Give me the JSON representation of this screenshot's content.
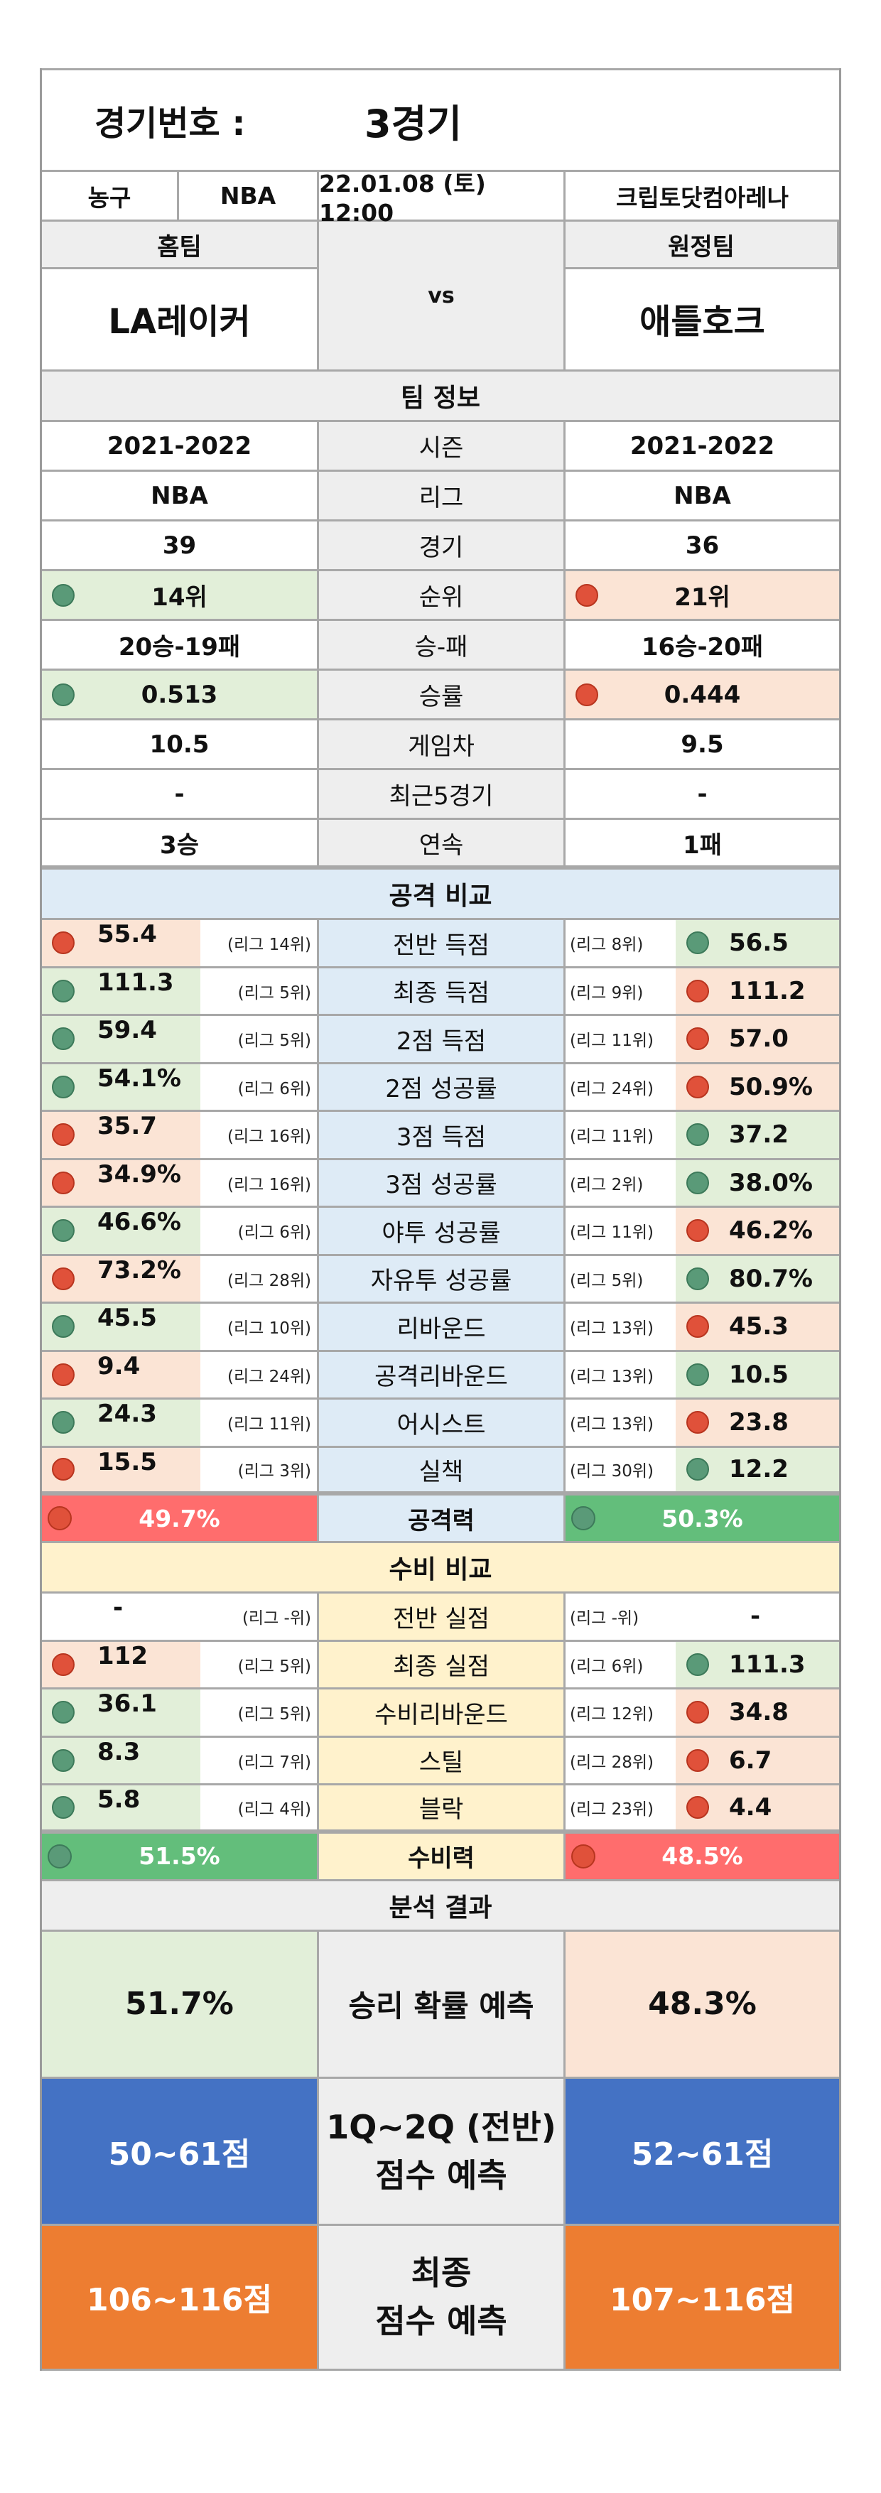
{
  "header": {
    "game_label": "경기번호 :",
    "game_value": "3경기",
    "sport": "농구",
    "league": "NBA",
    "datetime": "22.01.08 (토) 12:00",
    "venue": "크립토닷컴아레나"
  },
  "teams": {
    "home_label": "홈팀",
    "away_label": "원정팀",
    "home_name": "LA레이커",
    "away_name": "애틀호크",
    "vs": "vs"
  },
  "team_info": {
    "section": "팀 정보",
    "rows": [
      {
        "label": "시즌",
        "home": "2021-2022",
        "away": "2021-2022"
      },
      {
        "label": "리그",
        "home": "NBA",
        "away": "NBA"
      },
      {
        "label": "경기",
        "home": "39",
        "away": "36"
      },
      {
        "label": "순위",
        "home": "14위",
        "away": "21위",
        "home_dot": "green",
        "away_dot": "red"
      },
      {
        "label": "승-패",
        "home": "20승-19패",
        "away": "16승-20패"
      },
      {
        "label": "승률",
        "home": "0.513",
        "away": "0.444",
        "home_dot": "green",
        "away_dot": "red"
      },
      {
        "label": "게임차",
        "home": "10.5",
        "away": "9.5"
      },
      {
        "label": "최근5경기",
        "home": "-",
        "away": "-"
      },
      {
        "label": "연속",
        "home": "3승",
        "away": "1패"
      }
    ]
  },
  "attack": {
    "section": "공격 비교",
    "rows": [
      {
        "label": "전반 득점",
        "home": "55.4",
        "home_rank": "(리그 14위)",
        "home_dot": "red",
        "away": "56.5",
        "away_rank": "(리그 8위)",
        "away_dot": "green"
      },
      {
        "label": "최종 득점",
        "home": "111.3",
        "home_rank": "(리그 5위)",
        "home_dot": "green",
        "away": "111.2",
        "away_rank": "(리그 9위)",
        "away_dot": "red"
      },
      {
        "label": "2점 득점",
        "home": "59.4",
        "home_rank": "(리그 5위)",
        "home_dot": "green",
        "away": "57.0",
        "away_rank": "(리그 11위)",
        "away_dot": "red"
      },
      {
        "label": "2점 성공률",
        "home": "54.1%",
        "home_rank": "(리그 6위)",
        "home_dot": "green",
        "away": "50.9%",
        "away_rank": "(리그 24위)",
        "away_dot": "red"
      },
      {
        "label": "3점 득점",
        "home": "35.7",
        "home_rank": "(리그 16위)",
        "home_dot": "red",
        "away": "37.2",
        "away_rank": "(리그 11위)",
        "away_dot": "green"
      },
      {
        "label": "3점 성공률",
        "home": "34.9%",
        "home_rank": "(리그 16위)",
        "home_dot": "red",
        "away": "38.0%",
        "away_rank": "(리그 2위)",
        "away_dot": "green"
      },
      {
        "label": "야투 성공률",
        "home": "46.6%",
        "home_rank": "(리그 6위)",
        "home_dot": "green",
        "away": "46.2%",
        "away_rank": "(리그 11위)",
        "away_dot": "red"
      },
      {
        "label": "자유투 성공률",
        "home": "73.2%",
        "home_rank": "(리그 28위)",
        "home_dot": "red",
        "away": "80.7%",
        "away_rank": "(리그 5위)",
        "away_dot": "green"
      },
      {
        "label": "리바운드",
        "home": "45.5",
        "home_rank": "(리그 10위)",
        "home_dot": "green",
        "away": "45.3",
        "away_rank": "(리그 13위)",
        "away_dot": "red"
      },
      {
        "label": "공격리바운드",
        "home": "9.4",
        "home_rank": "(리그 24위)",
        "home_dot": "red",
        "away": "10.5",
        "away_rank": "(리그 13위)",
        "away_dot": "green"
      },
      {
        "label": "어시스트",
        "home": "24.3",
        "home_rank": "(리그 11위)",
        "home_dot": "green",
        "away": "23.8",
        "away_rank": "(리그 13위)",
        "away_dot": "red"
      },
      {
        "label": "실책",
        "home": "15.5",
        "home_rank": "(리그 3위)",
        "home_dot": "red",
        "away": "12.2",
        "away_rank": "(리그 30위)",
        "away_dot": "green"
      }
    ],
    "power": {
      "label": "공격력",
      "home": "49.7%",
      "away": "50.3%"
    }
  },
  "defense": {
    "section": "수비 비교",
    "rows": [
      {
        "label": "전반 실점",
        "home": "-",
        "home_rank": "(리그 -위)",
        "home_dot": "none",
        "away": "-",
        "away_rank": "(리그 -위)",
        "away_dot": "none"
      },
      {
        "label": "최종 실점",
        "home": "112",
        "home_rank": "(리그 5위)",
        "home_dot": "red",
        "away": "111.3",
        "away_rank": "(리그 6위)",
        "away_dot": "green"
      },
      {
        "label": "수비리바운드",
        "home": "36.1",
        "home_rank": "(리그 5위)",
        "home_dot": "green",
        "away": "34.8",
        "away_rank": "(리그 12위)",
        "away_dot": "red"
      },
      {
        "label": "스틸",
        "home": "8.3",
        "home_rank": "(리그 7위)",
        "home_dot": "green",
        "away": "6.7",
        "away_rank": "(리그 28위)",
        "away_dot": "red"
      },
      {
        "label": "블락",
        "home": "5.8",
        "home_rank": "(리그 4위)",
        "home_dot": "green",
        "away": "4.4",
        "away_rank": "(리그 23위)",
        "away_dot": "red"
      }
    ],
    "power": {
      "label": "수비력",
      "home": "51.5%",
      "away": "48.5%"
    }
  },
  "analysis": {
    "section": "분석 결과",
    "win": {
      "label": "승리 확률 예측",
      "home": "51.7%",
      "away": "48.3%"
    },
    "half": {
      "label_line1": "1Q~2Q (전반)",
      "label_line2": "점수 예측",
      "home": "50~61점",
      "away": "52~61점"
    },
    "final": {
      "label_line1": "최종",
      "label_line2": "점수 예측",
      "home": "106~116점",
      "away": "107~116점"
    }
  },
  "colors": {
    "green_fill": "#e2efd9",
    "orange_fill": "#fbe4d5",
    "attack_blue": "#deebf6",
    "defense_yellow": "#fff2cc",
    "power_red": "#ff6d6d",
    "power_green": "#63be7b",
    "half_blue": "#4472c4",
    "final_orange": "#ed7d31",
    "dot_green": "#5a9a78",
    "dot_red": "#e0513a"
  }
}
